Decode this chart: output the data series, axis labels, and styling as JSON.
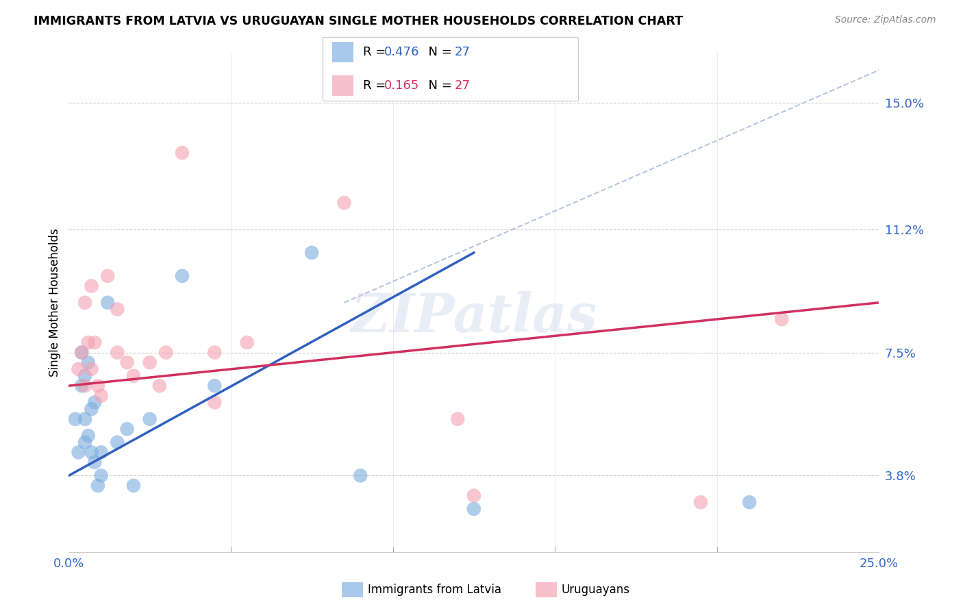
{
  "title": "IMMIGRANTS FROM LATVIA VS URUGUAYAN SINGLE MOTHER HOUSEHOLDS CORRELATION CHART",
  "source": "Source: ZipAtlas.com",
  "ylabel": "Single Mother Households",
  "ytick_values": [
    3.8,
    7.5,
    11.2,
    15.0
  ],
  "xlim": [
    0.0,
    25.0
  ],
  "ylim": [
    1.5,
    16.5
  ],
  "legend_blue_r": "0.476",
  "legend_blue_n": "27",
  "legend_pink_r": "0.165",
  "legend_pink_n": "27",
  "blue_color": "#7aaddf",
  "pink_color": "#f4a0b0",
  "blue_line_color": "#3060c0",
  "pink_line_color": "#d03060",
  "dashed_line_color": "#aabbdd",
  "watermark": "ZIPatlas",
  "blue_scatter_x": [
    0.2,
    0.3,
    0.4,
    0.4,
    0.5,
    0.5,
    0.5,
    0.6,
    0.6,
    0.7,
    0.7,
    0.8,
    0.8,
    0.9,
    1.0,
    1.0,
    1.2,
    1.5,
    1.8,
    2.0,
    2.5,
    3.5,
    4.5,
    7.5,
    9.0,
    12.5,
    21.0
  ],
  "blue_scatter_y": [
    5.5,
    4.5,
    6.5,
    7.5,
    4.8,
    5.5,
    6.8,
    5.0,
    7.2,
    4.5,
    5.8,
    4.2,
    6.0,
    3.5,
    3.8,
    4.5,
    9.0,
    4.8,
    5.2,
    3.5,
    5.5,
    9.8,
    6.5,
    10.5,
    3.8,
    2.8,
    3.0
  ],
  "pink_scatter_x": [
    0.3,
    0.4,
    0.5,
    0.5,
    0.6,
    0.7,
    0.7,
    0.8,
    0.9,
    1.0,
    1.2,
    1.5,
    1.5,
    1.8,
    2.0,
    2.5,
    2.8,
    3.0,
    3.5,
    4.5,
    4.5,
    5.5,
    8.5,
    12.0,
    12.5,
    19.5,
    22.0
  ],
  "pink_scatter_y": [
    7.0,
    7.5,
    6.5,
    9.0,
    7.8,
    9.5,
    7.0,
    7.8,
    6.5,
    6.2,
    9.8,
    8.8,
    7.5,
    7.2,
    6.8,
    7.2,
    6.5,
    7.5,
    13.5,
    6.0,
    7.5,
    7.8,
    12.0,
    5.5,
    3.2,
    3.0,
    8.5
  ],
  "blue_line_x0": 0.0,
  "blue_line_y0": 3.8,
  "blue_line_x1": 12.5,
  "blue_line_y1": 10.5,
  "pink_line_x0": 0.0,
  "pink_line_y0": 6.5,
  "pink_line_x1": 25.0,
  "pink_line_y1": 9.0,
  "dash_x0": 8.5,
  "dash_y0": 9.0,
  "dash_x1": 25.5,
  "dash_y1": 16.2
}
